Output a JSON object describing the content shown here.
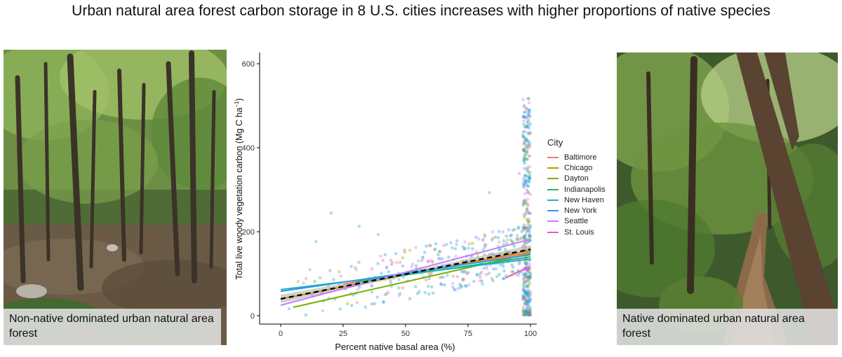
{
  "title": "Urban natural area forest carbon storage in 8 U.S. cities increases with higher proportions of native species",
  "left_photo": {
    "caption": "Non-native dominated urban natural area forest"
  },
  "right_photo": {
    "caption": "Native dominated urban natural area forest"
  },
  "chart_data": {
    "type": "scatter",
    "xlabel": "Percent native basal area (%)",
    "ylabel": "Total live woody vegetation carbon (Mg C ha",
    "ylabel_sup": "−1",
    "ylabel_close": ")",
    "xlim": [
      0,
      100
    ],
    "ylim": [
      0,
      600
    ],
    "xticks": [
      0,
      25,
      50,
      75,
      100
    ],
    "yticks": [
      0,
      200,
      400,
      600
    ],
    "grid": false,
    "legend_title": "City",
    "legend_position": "right",
    "series": [
      {
        "name": "Baltimore",
        "color": "#F8766D",
        "fit": [
          [
            25,
            75
          ],
          [
            100,
            150
          ]
        ]
      },
      {
        "name": "Chicago",
        "color": "#C49A00",
        "fit": [
          [
            0,
            40
          ],
          [
            100,
            155
          ]
        ]
      },
      {
        "name": "Dayton",
        "color": "#7CAE00",
        "fit": [
          [
            5,
            20
          ],
          [
            100,
            148
          ]
        ]
      },
      {
        "name": "Indianapolis",
        "color": "#27B45F",
        "fit": [
          [
            30,
            80
          ],
          [
            100,
            140
          ]
        ]
      },
      {
        "name": "New Haven",
        "color": "#1FB3BC",
        "fit": [
          [
            0,
            62
          ],
          [
            100,
            135
          ]
        ]
      },
      {
        "name": "New York",
        "color": "#2E9CE6",
        "fit": [
          [
            0,
            58
          ],
          [
            100,
            145
          ]
        ]
      },
      {
        "name": "Seattle",
        "color": "#C77CFF",
        "fit": [
          [
            0,
            25
          ],
          [
            100,
            182
          ]
        ]
      },
      {
        "name": "St. Louis",
        "color": "#E75BD2",
        "fit": [
          [
            90,
            90
          ],
          [
            100,
            118
          ]
        ]
      }
    ],
    "overall_fit": {
      "style": "dashed",
      "color": "#000000",
      "points": [
        [
          0,
          40
        ],
        [
          100,
          158
        ]
      ]
    },
    "confidence_band": {
      "color": "#9a9a9a",
      "lower": [
        [
          0,
          30
        ],
        [
          50,
          95
        ],
        [
          100,
          148
        ]
      ],
      "upper": [
        [
          0,
          50
        ],
        [
          50,
          103
        ],
        [
          100,
          168
        ]
      ]
    }
  }
}
